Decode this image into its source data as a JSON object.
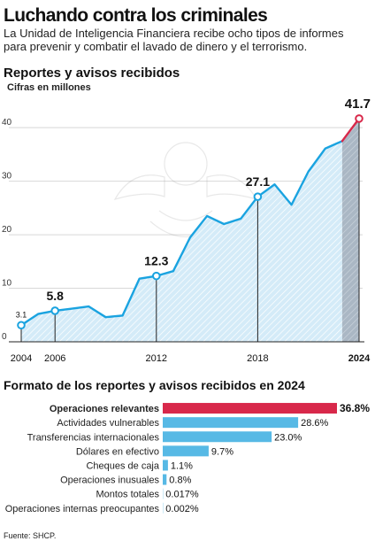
{
  "title": "Luchando contra los criminales",
  "subtitle": "La Unidad de Inteligencia Financiera recibe ocho tipos de informes para prevenir y combatir el lavado de dinero y el terrorismo.",
  "source": "Fuente: SHCP.",
  "colors": {
    "line": "#1aa3e0",
    "fill": "#d4ebf8",
    "highlight": "#d8284a",
    "shade": "#aab7c4",
    "bar": "#57b9e5",
    "text": "#111111"
  },
  "chart_data": [
    {
      "type": "area",
      "title": "Reportes y avisos recibidos",
      "ylabel": "Cifras en millones",
      "xlabel": "",
      "ylim": [
        0,
        44
      ],
      "yticks": [
        0,
        10,
        20,
        30,
        40
      ],
      "xlim": [
        2004,
        2024
      ],
      "xticks": [
        2004,
        2006,
        2012,
        2018,
        2024
      ],
      "grid": true,
      "series": [
        {
          "x": [
            2004,
            2005,
            2006,
            2007,
            2008,
            2009,
            2010,
            2011,
            2012,
            2013,
            2014,
            2015,
            2016,
            2017,
            2018,
            2019,
            2020,
            2021,
            2022,
            2023,
            2024
          ],
          "values": [
            3.1,
            5.2,
            5.8,
            6.2,
            6.6,
            4.6,
            4.9,
            11.8,
            12.3,
            13.2,
            19.5,
            23.5,
            22.0,
            23.0,
            27.1,
            29.4,
            25.6,
            31.8,
            36.1,
            37.5,
            41.7
          ]
        }
      ],
      "labels": [
        {
          "x": 2004,
          "text": "3.1"
        },
        {
          "x": 2006,
          "text": "5.8"
        },
        {
          "x": 2012,
          "text": "12.3"
        },
        {
          "x": 2018,
          "text": "27.1"
        },
        {
          "x": 2024,
          "text": "41.7"
        }
      ]
    },
    {
      "type": "bar",
      "title": "Formato de los reportes y avisos recibidos en 2024",
      "categories": [
        "Operaciones relevantes",
        "Actividades vulnerables",
        "Transferencias internacionales",
        "Dólares en efectivo",
        "Cheques de caja",
        "Operaciones inusuales",
        "Montos totales",
        "Operaciones internas preocupantes"
      ],
      "values": [
        36.8,
        28.6,
        23.0,
        9.7,
        1.1,
        0.8,
        0.017,
        0.002
      ],
      "value_labels": [
        "36.8%",
        "28.6%",
        "23.0%",
        "9.7%",
        "1.1%",
        "0.8%",
        "0.017%",
        "0.002%"
      ],
      "highlight_index": 0
    }
  ]
}
